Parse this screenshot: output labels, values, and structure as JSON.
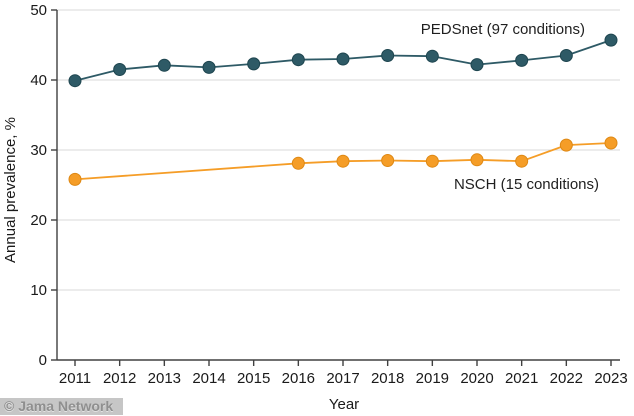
{
  "figure": {
    "watermark": "© Jama Network",
    "background_color": "#ffffff",
    "axis_color": "#404040",
    "gridline_color": "#d9d9d9",
    "text_color": "#1a1a1a"
  },
  "chart_data": {
    "type": "line",
    "title": "",
    "xlabel": "Year",
    "ylabel": "Annual prevalence, %",
    "x_ticks": [
      2011,
      2012,
      2013,
      2014,
      2015,
      2016,
      2017,
      2018,
      2019,
      2020,
      2021,
      2022,
      2023
    ],
    "y_ticks": [
      0,
      10,
      20,
      30,
      40,
      50
    ],
    "xlim": [
      2011,
      2023
    ],
    "ylim": [
      0,
      50
    ],
    "grid": "horizontal",
    "legend_position": "inline-annotations",
    "series": [
      {
        "name": "PEDSnet (97 conditions)",
        "color": "#2E5A66",
        "marker_stroke": "#1E454F",
        "x": [
          2011,
          2012,
          2013,
          2014,
          2015,
          2016,
          2017,
          2018,
          2019,
          2020,
          2021,
          2022,
          2023
        ],
        "values": [
          39.9,
          41.5,
          42.1,
          41.8,
          42.3,
          42.9,
          43.0,
          43.5,
          43.4,
          42.2,
          42.8,
          43.5,
          45.7
        ]
      },
      {
        "name": "NSCH (15 conditions)",
        "color": "#F59D27",
        "marker_stroke": "#DE8814",
        "x": [
          2011,
          2016,
          2017,
          2018,
          2019,
          2020,
          2021,
          2022,
          2023
        ],
        "values": [
          25.8,
          28.1,
          28.4,
          28.5,
          28.4,
          28.6,
          28.4,
          30.7,
          31.0
        ]
      }
    ]
  }
}
